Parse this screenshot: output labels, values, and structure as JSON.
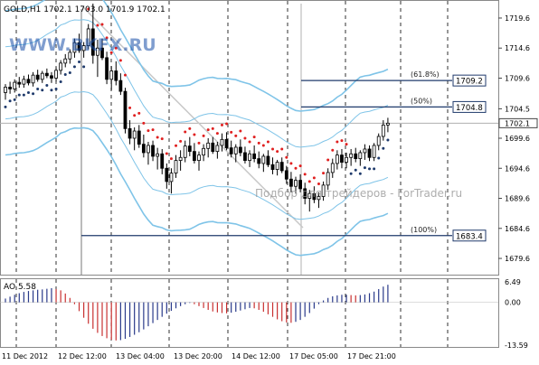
{
  "header": {
    "symbol_info": "GOLD,H1  1702.1 1703.0 1701.9 1702.1",
    "watermark_top": "WWW.BKFX.RU",
    "watermark_center": "Подбор для трейдеров - ForTrader.ru"
  },
  "colors": {
    "bull": "#000000",
    "bear": "#000000",
    "envelope": "#7fc4e8",
    "sar_red": "#e02020",
    "sar_blue": "#1f3a6b",
    "fib_line": "#1f3a6b",
    "ao_up": "#2a3a8a",
    "ao_down": "#c83030"
  },
  "chart_data": [
    {
      "type": "candlestick",
      "title": "GOLD,H1",
      "ylim": [
        1677.5,
        1722
      ],
      "y_ticks": [
        "1719.6",
        "1714.6",
        "1709.6",
        "1704.5",
        "1699.6",
        "1694.6",
        "1689.6",
        "1684.6",
        "1679.6"
      ],
      "current_price": "1702.1",
      "x_ticks": [
        "11 Dec 2012",
        "12 Dec 12:00",
        "13 Dec 04:00",
        "13 Dec 20:00",
        "14 Dec 12:00",
        "17 Dec 05:00",
        "17 Dec 21:00"
      ],
      "fib_levels": [
        {
          "ratio": "(61.8%)",
          "price": "1709.2"
        },
        {
          "ratio": "(50%)",
          "price": "1704.8"
        },
        {
          "ratio": "(100%)",
          "price": "1683.4"
        }
      ],
      "candles": [
        [
          1707.2,
          1708.6,
          1706.0,
          1708.1
        ],
        [
          1708.1,
          1709.0,
          1707.0,
          1707.8
        ],
        [
          1707.8,
          1709.4,
          1707.2,
          1708.9
        ],
        [
          1708.9,
          1709.8,
          1708.0,
          1708.6
        ],
        [
          1708.6,
          1710.0,
          1708.0,
          1709.4
        ],
        [
          1709.4,
          1710.2,
          1708.4,
          1708.8
        ],
        [
          1708.8,
          1710.6,
          1708.2,
          1710.1
        ],
        [
          1710.1,
          1711.0,
          1709.0,
          1709.4
        ],
        [
          1709.4,
          1710.8,
          1708.8,
          1710.4
        ],
        [
          1710.4,
          1711.2,
          1709.6,
          1710.0
        ],
        [
          1710.0,
          1710.6,
          1708.8,
          1709.6
        ],
        [
          1709.6,
          1711.4,
          1709.0,
          1710.9
        ],
        [
          1710.9,
          1712.6,
          1710.2,
          1712.1
        ],
        [
          1712.1,
          1713.6,
          1711.4,
          1712.8
        ],
        [
          1712.8,
          1714.4,
          1712.0,
          1713.9
        ],
        [
          1713.9,
          1716.2,
          1713.0,
          1715.5
        ],
        [
          1715.5,
          1717.0,
          1713.8,
          1714.2
        ],
        [
          1714.2,
          1715.6,
          1713.0,
          1715.0
        ],
        [
          1715.0,
          1718.6,
          1714.4,
          1717.8
        ],
        [
          1717.8,
          1722.0,
          1712.0,
          1713.4
        ],
        [
          1713.4,
          1716.0,
          1709.8,
          1714.6
        ],
        [
          1714.6,
          1716.2,
          1712.6,
          1713.0
        ],
        [
          1713.0,
          1714.0,
          1708.6,
          1709.4
        ],
        [
          1709.4,
          1711.6,
          1707.6,
          1710.8
        ],
        [
          1710.8,
          1712.4,
          1708.4,
          1709.2
        ],
        [
          1709.2,
          1710.4,
          1706.8,
          1707.4
        ],
        [
          1707.4,
          1708.0,
          1700.4,
          1701.2
        ],
        [
          1701.2,
          1702.6,
          1698.6,
          1699.6
        ],
        [
          1699.6,
          1701.4,
          1697.6,
          1700.8
        ],
        [
          1700.8,
          1701.8,
          1698.0,
          1698.6
        ],
        [
          1698.6,
          1700.2,
          1696.4,
          1697.2
        ],
        [
          1697.2,
          1699.0,
          1695.2,
          1698.4
        ],
        [
          1698.4,
          1699.2,
          1695.8,
          1696.6
        ],
        [
          1696.6,
          1698.0,
          1694.4,
          1697.0
        ],
        [
          1697.0,
          1697.8,
          1693.6,
          1694.6
        ],
        [
          1694.6,
          1695.4,
          1691.2,
          1692.4
        ],
        [
          1692.4,
          1694.6,
          1690.4,
          1693.8
        ],
        [
          1693.8,
          1696.8,
          1693.0,
          1695.9
        ],
        [
          1695.9,
          1697.6,
          1694.2,
          1696.4
        ],
        [
          1696.4,
          1699.2,
          1695.6,
          1698.3
        ],
        [
          1698.3,
          1699.8,
          1696.6,
          1697.4
        ],
        [
          1697.4,
          1698.8,
          1695.4,
          1695.9
        ],
        [
          1695.9,
          1697.4,
          1694.2,
          1696.8
        ],
        [
          1696.8,
          1698.6,
          1695.8,
          1697.9
        ],
        [
          1697.9,
          1699.6,
          1696.4,
          1698.8
        ],
        [
          1698.8,
          1699.8,
          1697.0,
          1697.4
        ],
        [
          1697.4,
          1699.0,
          1696.2,
          1698.4
        ],
        [
          1698.4,
          1700.4,
          1697.4,
          1699.4
        ],
        [
          1699.4,
          1700.6,
          1697.6,
          1698.0
        ],
        [
          1698.0,
          1699.2,
          1696.4,
          1697.0
        ],
        [
          1697.0,
          1698.6,
          1695.6,
          1698.1
        ],
        [
          1698.1,
          1699.4,
          1696.6,
          1697.2
        ],
        [
          1697.2,
          1698.2,
          1695.4,
          1695.9
        ],
        [
          1695.9,
          1697.6,
          1694.8,
          1697.0
        ],
        [
          1697.0,
          1698.4,
          1695.6,
          1696.2
        ],
        [
          1696.2,
          1697.4,
          1694.6,
          1695.4
        ],
        [
          1695.4,
          1697.0,
          1694.0,
          1696.6
        ],
        [
          1696.6,
          1697.6,
          1694.8,
          1695.2
        ],
        [
          1695.2,
          1696.4,
          1693.6,
          1694.4
        ],
        [
          1694.4,
          1696.0,
          1693.4,
          1695.6
        ],
        [
          1695.6,
          1696.4,
          1693.8,
          1694.2
        ],
        [
          1694.2,
          1695.0,
          1692.0,
          1692.8
        ],
        [
          1692.8,
          1694.0,
          1690.6,
          1691.6
        ],
        [
          1691.6,
          1693.2,
          1690.4,
          1692.6
        ],
        [
          1692.6,
          1693.6,
          1690.6,
          1691.2
        ],
        [
          1691.2,
          1692.2,
          1688.6,
          1689.6
        ],
        [
          1689.6,
          1691.0,
          1687.4,
          1690.4
        ],
        [
          1690.4,
          1691.6,
          1688.8,
          1689.4
        ],
        [
          1689.4,
          1690.6,
          1688.0,
          1689.9
        ],
        [
          1689.9,
          1692.4,
          1689.2,
          1691.8
        ],
        [
          1691.8,
          1694.6,
          1691.0,
          1693.9
        ],
        [
          1693.9,
          1696.2,
          1693.0,
          1695.4
        ],
        [
          1695.4,
          1697.6,
          1694.4,
          1696.8
        ],
        [
          1696.8,
          1697.8,
          1694.6,
          1695.6
        ],
        [
          1695.6,
          1697.2,
          1694.6,
          1696.4
        ],
        [
          1696.4,
          1697.8,
          1695.0,
          1697.0
        ],
        [
          1697.0,
          1698.0,
          1695.6,
          1696.2
        ],
        [
          1696.2,
          1697.6,
          1695.0,
          1697.2
        ],
        [
          1697.2,
          1698.6,
          1696.0,
          1697.8
        ],
        [
          1697.8,
          1698.4,
          1695.8,
          1696.4
        ],
        [
          1696.4,
          1698.8,
          1695.8,
          1698.4
        ],
        [
          1698.4,
          1700.4,
          1697.6,
          1699.9
        ],
        [
          1699.9,
          1702.6,
          1699.2,
          1701.8
        ],
        [
          1701.8,
          1703.0,
          1700.6,
          1702.1
        ]
      ],
      "indicator_sar": "Parabolic SAR",
      "indicator_envelope": "Envelope bands"
    },
    {
      "type": "bar",
      "title": "AO 5.58",
      "ylim": [
        -13.59,
        6.49
      ],
      "y_ticks": [
        "6.49",
        "0.00",
        "-13.59"
      ],
      "values": [
        1.2,
        1.8,
        2.4,
        2.9,
        3.3,
        3.6,
        3.8,
        4.0,
        4.1,
        4.3,
        4.5,
        4.2,
        3.8,
        2.8,
        1.4,
        -0.6,
        -2.8,
        -4.9,
        -6.8,
        -8.4,
        -9.7,
        -10.7,
        -11.4,
        -11.9,
        -12.1,
        -12.0,
        -11.6,
        -11.0,
        -10.3,
        -9.5,
        -8.6,
        -7.6,
        -6.6,
        -5.6,
        -4.6,
        -3.6,
        -2.7,
        -1.9,
        -1.2,
        -0.6,
        -0.2,
        -0.6,
        -1.2,
        -1.8,
        -2.4,
        -2.9,
        -3.2,
        -3.4,
        -3.5,
        -3.3,
        -3.0,
        -2.6,
        -2.2,
        -1.8,
        -1.9,
        -2.4,
        -3.0,
        -3.8,
        -4.6,
        -5.4,
        -6.0,
        -6.4,
        -6.5,
        -6.2,
        -5.6,
        -4.6,
        -3.4,
        -2.0,
        -0.6,
        0.6,
        1.4,
        1.9,
        2.2,
        2.4,
        2.4,
        2.3,
        2.2,
        2.3,
        2.5,
        2.9,
        3.4,
        4.2,
        5.0,
        5.58
      ]
    }
  ]
}
